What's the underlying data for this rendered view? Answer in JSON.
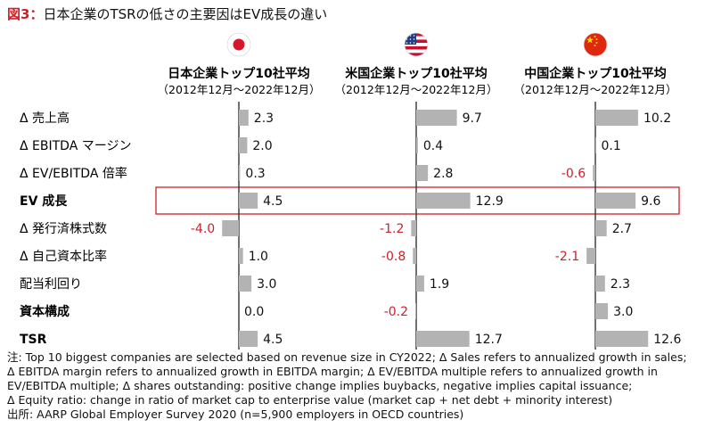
{
  "title": {
    "fig": "図3",
    "sep": "：",
    "text": "日本企業のTSRの低さの主要因はEV成長の違い"
  },
  "colors": {
    "accent": "#cc2229",
    "bar": "#b3b3b3",
    "axis": "#333333",
    "highlight_border": "#cc2229"
  },
  "chart_data": {
    "type": "bar",
    "orientation": "horizontal",
    "title": "日本企業のTSRの低さの主要因はEV成長の違い",
    "categories": [
      "Δ 売上高",
      "Δ EBITDA マージン",
      "Δ EV/EBITDA 倍率",
      "EV 成長",
      "Δ 発行済株式数",
      "Δ 自己資本比率",
      "配当利回り",
      "資本構成",
      "TSR"
    ],
    "bold_categories": [
      "EV 成長",
      "資本構成",
      "TSR"
    ],
    "highlighted_category": "EV 成長",
    "series": [
      {
        "name": "日本企業トップ10社平均",
        "period": "（2012年12月～2022年12月）",
        "flag": "japan-flag",
        "values": [
          2.3,
          2.0,
          0.3,
          4.5,
          -4.0,
          1.0,
          3.0,
          0.0,
          4.5
        ],
        "labels": [
          "2.3",
          "2.0",
          "0.3",
          "4.5",
          "-4.0",
          "1.0",
          "3.0",
          "0.0",
          "4.5"
        ]
      },
      {
        "name": "米国企業トップ10社平均",
        "period": "（2012年12月～2022年12月）",
        "flag": "usa-flag",
        "values": [
          9.7,
          0.4,
          2.8,
          12.9,
          -1.2,
          -0.8,
          1.9,
          -0.2,
          12.7
        ],
        "labels": [
          "9.7",
          "0.4",
          "2.8",
          "12.9",
          "-1.2",
          "-0.8",
          "1.9",
          "-0.2",
          "12.7"
        ]
      },
      {
        "name": "中国企業トップ10社平均",
        "period": "（2012年12月～2022年12月）",
        "flag": "china-flag",
        "values": [
          10.2,
          0.1,
          -0.6,
          9.6,
          2.7,
          -2.1,
          2.3,
          3.0,
          12.6
        ],
        "labels": [
          "10.2",
          "0.1",
          "-0.6",
          "9.6",
          "2.7",
          "-2.1",
          "2.3",
          "3.0",
          "12.6"
        ]
      }
    ]
  },
  "notes": [
    "注: Top 10 biggest companies are selected based on revenue size in CY2022;  Δ Sales refers to annualized growth in sales;",
    "Δ EBITDA margin refers to annualized growth in EBITDA margin; Δ EV/EBITDA multiple refers to annualized growth in",
    "EV/EBITDA multiple; Δ shares outstanding: positive change implies buybacks, negative implies capital issuance;",
    "Δ Equity ratio: change in ratio of market cap to enterprise value (market cap + net debt + minority interest)",
    "出所: AARP Global Employer Survey 2020 (n=5,900 employers in OECD countries)"
  ]
}
